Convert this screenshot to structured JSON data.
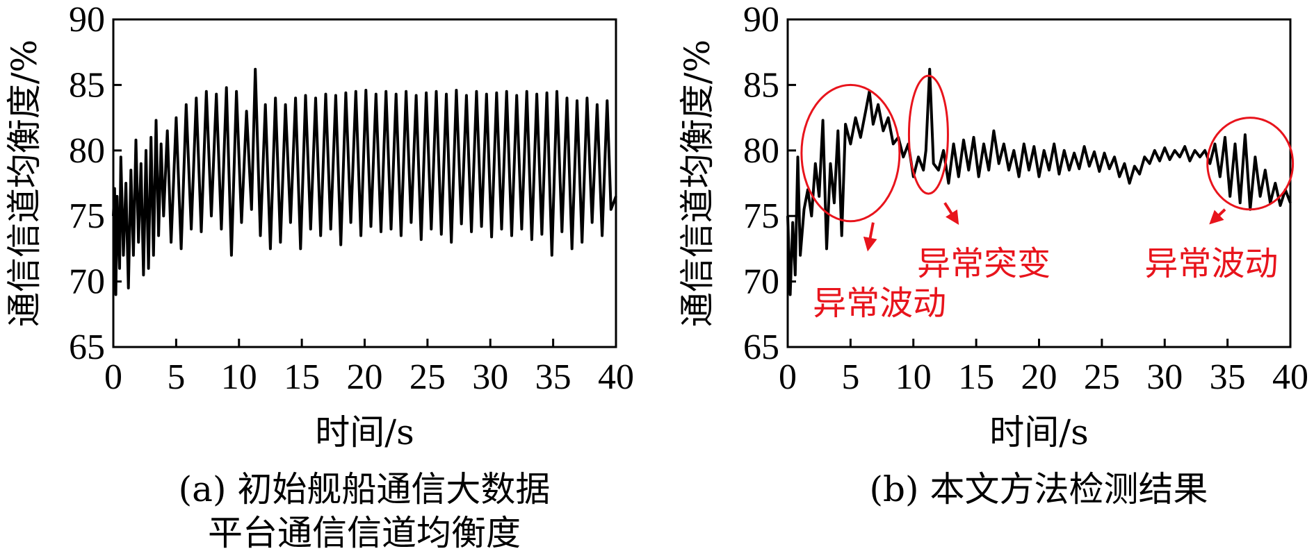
{
  "colors": {
    "series": "#000000",
    "annotation": "#e8141c",
    "axis": "#000000"
  },
  "chart_data": [
    {
      "id": "a",
      "type": "line",
      "title": "",
      "caption_lines": [
        "(a) 初始舰船通信大数据",
        "平台通信信道均衡度"
      ],
      "xlabel": "时间/s",
      "ylabel": "通信信道均衡度/%",
      "xlim": [
        0,
        40
      ],
      "ylim": [
        65,
        90
      ],
      "xticks": [
        0,
        5,
        10,
        15,
        20,
        25,
        30,
        35,
        40
      ],
      "yticks": [
        65,
        70,
        75,
        80,
        85,
        90
      ],
      "grid": false,
      "series": [
        {
          "values": [
            [
              0,
              75.0
            ],
            [
              0.1,
              77.1
            ],
            [
              0.2,
              69.0
            ],
            [
              0.3,
              76.5
            ],
            [
              0.5,
              71.0
            ],
            [
              0.6,
              79.5
            ],
            [
              0.8,
              72.0
            ],
            [
              1.0,
              77.5
            ],
            [
              1.2,
              69.5
            ],
            [
              1.4,
              78.5
            ],
            [
              1.6,
              72.0
            ],
            [
              1.8,
              80.8
            ],
            [
              2.0,
              73.0
            ],
            [
              2.2,
              79.0
            ],
            [
              2.4,
              70.5
            ],
            [
              2.6,
              80.0
            ],
            [
              2.8,
              71.0
            ],
            [
              3.0,
              81.0
            ],
            [
              3.2,
              72.0
            ],
            [
              3.4,
              82.3
            ],
            [
              3.6,
              73.5
            ],
            [
              3.8,
              80.5
            ],
            [
              4.0,
              75.0
            ],
            [
              4.3,
              81.5
            ],
            [
              4.6,
              73.0
            ],
            [
              5.0,
              82.5
            ],
            [
              5.4,
              72.5
            ],
            [
              5.8,
              83.5
            ],
            [
              6.2,
              74.0
            ],
            [
              6.6,
              84.0
            ],
            [
              7.0,
              73.8
            ],
            [
              7.4,
              84.5
            ],
            [
              7.8,
              75.0
            ],
            [
              8.2,
              84.3
            ],
            [
              8.6,
              74.0
            ],
            [
              9.0,
              84.8
            ],
            [
              9.4,
              72.0
            ],
            [
              9.8,
              84.5
            ],
            [
              10.2,
              74.5
            ],
            [
              10.6,
              83.0
            ],
            [
              11.0,
              75.5
            ],
            [
              11.3,
              86.2
            ],
            [
              11.7,
              73.5
            ],
            [
              12.1,
              83.5
            ],
            [
              12.5,
              72.5
            ],
            [
              12.9,
              84.0
            ],
            [
              13.3,
              73.0
            ],
            [
              13.7,
              83.5
            ],
            [
              14.1,
              74.5
            ],
            [
              14.5,
              84.0
            ],
            [
              14.9,
              72.5
            ],
            [
              15.3,
              84.2
            ],
            [
              15.7,
              74.0
            ],
            [
              16.1,
              84.0
            ],
            [
              16.5,
              73.5
            ],
            [
              16.9,
              84.3
            ],
            [
              17.3,
              74.0
            ],
            [
              17.7,
              84.2
            ],
            [
              18.1,
              72.8
            ],
            [
              18.5,
              84.4
            ],
            [
              18.9,
              74.5
            ],
            [
              19.3,
              84.5
            ],
            [
              19.7,
              73.5
            ],
            [
              20.1,
              84.6
            ],
            [
              20.5,
              74.2
            ],
            [
              20.9,
              84.3
            ],
            [
              21.3,
              73.8
            ],
            [
              21.7,
              84.5
            ],
            [
              22.1,
              74.0
            ],
            [
              22.5,
              84.3
            ],
            [
              22.9,
              73.5
            ],
            [
              23.3,
              84.5
            ],
            [
              23.7,
              74.5
            ],
            [
              24.1,
              84.2
            ],
            [
              24.5,
              73.2
            ],
            [
              24.9,
              84.4
            ],
            [
              25.3,
              74.0
            ],
            [
              25.7,
              84.5
            ],
            [
              26.1,
              73.6
            ],
            [
              26.5,
              84.3
            ],
            [
              26.9,
              73.0
            ],
            [
              27.3,
              84.6
            ],
            [
              27.7,
              74.4
            ],
            [
              28.1,
              84.2
            ],
            [
              28.5,
              73.8
            ],
            [
              28.9,
              84.5
            ],
            [
              29.3,
              74.2
            ],
            [
              29.7,
              84.3
            ],
            [
              30.1,
              73.4
            ],
            [
              30.5,
              84.4
            ],
            [
              30.9,
              74.0
            ],
            [
              31.3,
              84.5
            ],
            [
              31.7,
              73.5
            ],
            [
              32.1,
              84.2
            ],
            [
              32.5,
              74.0
            ],
            [
              32.9,
              84.5
            ],
            [
              33.3,
              73.2
            ],
            [
              33.7,
              84.3
            ],
            [
              34.1,
              73.6
            ],
            [
              34.5,
              84.4
            ],
            [
              34.9,
              72.0
            ],
            [
              35.3,
              84.5
            ],
            [
              35.7,
              73.8
            ],
            [
              36.1,
              84.0
            ],
            [
              36.5,
              72.5
            ],
            [
              36.9,
              83.8
            ],
            [
              37.3,
              73.0
            ],
            [
              37.7,
              84.0
            ],
            [
              38.1,
              74.5
            ],
            [
              38.5,
              83.5
            ],
            [
              38.9,
              73.5
            ],
            [
              39.3,
              83.8
            ],
            [
              39.6,
              75.5
            ],
            [
              40.0,
              76.5
            ]
          ]
        }
      ]
    },
    {
      "id": "b",
      "type": "line",
      "title": "",
      "caption_lines": [
        "(b) 本文方法检测结果"
      ],
      "xlabel": "时间/s",
      "ylabel": "通信信道均衡度/%",
      "xlim": [
        0,
        40
      ],
      "ylim": [
        65,
        90
      ],
      "xticks": [
        0,
        5,
        10,
        15,
        20,
        25,
        30,
        35,
        40
      ],
      "yticks": [
        65,
        70,
        75,
        80,
        85,
        90
      ],
      "grid": false,
      "series": [
        {
          "values": [
            [
              0,
              75.0
            ],
            [
              0.2,
              69.0
            ],
            [
              0.4,
              74.5
            ],
            [
              0.6,
              70.5
            ],
            [
              0.8,
              79.5
            ],
            [
              1.0,
              72.0
            ],
            [
              1.3,
              75.5
            ],
            [
              1.6,
              77.0
            ],
            [
              1.9,
              75.0
            ],
            [
              2.2,
              79.0
            ],
            [
              2.5,
              76.5
            ],
            [
              2.8,
              82.3
            ],
            [
              3.1,
              72.5
            ],
            [
              3.4,
              79.0
            ],
            [
              3.7,
              76.0
            ],
            [
              4.0,
              81.5
            ],
            [
              4.3,
              73.5
            ],
            [
              4.6,
              82.0
            ],
            [
              5.0,
              80.5
            ],
            [
              5.4,
              82.5
            ],
            [
              5.8,
              81.0
            ],
            [
              6.2,
              83.0
            ],
            [
              6.5,
              84.5
            ],
            [
              6.8,
              82.0
            ],
            [
              7.2,
              83.5
            ],
            [
              7.6,
              81.5
            ],
            [
              8.0,
              82.5
            ],
            [
              8.4,
              80.5
            ],
            [
              8.8,
              81.0
            ],
            [
              9.2,
              79.5
            ],
            [
              9.6,
              80.5
            ],
            [
              10.0,
              78.0
            ],
            [
              10.4,
              79.5
            ],
            [
              10.8,
              78.5
            ],
            [
              11.0,
              80.0
            ],
            [
              11.3,
              86.2
            ],
            [
              11.6,
              79.0
            ],
            [
              12.0,
              78.5
            ],
            [
              12.4,
              80.0
            ],
            [
              12.8,
              77.5
            ],
            [
              13.2,
              80.5
            ],
            [
              13.6,
              78.0
            ],
            [
              14.0,
              80.8
            ],
            [
              14.4,
              78.5
            ],
            [
              14.8,
              81.0
            ],
            [
              15.2,
              78.0
            ],
            [
              15.6,
              80.5
            ],
            [
              16.0,
              78.5
            ],
            [
              16.4,
              81.5
            ],
            [
              16.8,
              79.0
            ],
            [
              17.2,
              80.5
            ],
            [
              17.6,
              78.5
            ],
            [
              18.0,
              80.0
            ],
            [
              18.4,
              78.0
            ],
            [
              18.8,
              80.5
            ],
            [
              19.2,
              78.5
            ],
            [
              19.6,
              80.3
            ],
            [
              20.0,
              78.0
            ],
            [
              20.4,
              80.0
            ],
            [
              20.8,
              78.5
            ],
            [
              21.2,
              80.5
            ],
            [
              21.6,
              78.2
            ],
            [
              22.0,
              80.0
            ],
            [
              22.4,
              78.5
            ],
            [
              22.8,
              79.8
            ],
            [
              23.2,
              78.6
            ],
            [
              23.6,
              80.3
            ],
            [
              24.0,
              78.8
            ],
            [
              24.4,
              79.9
            ],
            [
              24.8,
              78.4
            ],
            [
              25.2,
              79.8
            ],
            [
              25.6,
              78.6
            ],
            [
              26.0,
              79.5
            ],
            [
              26.4,
              78.0
            ],
            [
              26.8,
              79.0
            ],
            [
              27.2,
              77.5
            ],
            [
              27.6,
              78.8
            ],
            [
              28.0,
              78.2
            ],
            [
              28.4,
              79.5
            ],
            [
              28.8,
              79.0
            ],
            [
              29.2,
              80.0
            ],
            [
              29.6,
              79.2
            ],
            [
              30.0,
              80.2
            ],
            [
              30.4,
              79.3
            ],
            [
              30.8,
              80.0
            ],
            [
              31.2,
              79.5
            ],
            [
              31.6,
              80.3
            ],
            [
              32.0,
              79.2
            ],
            [
              32.4,
              80.0
            ],
            [
              32.8,
              79.5
            ],
            [
              33.2,
              80.0
            ],
            [
              33.6,
              79.0
            ],
            [
              34.0,
              80.5
            ],
            [
              34.4,
              78.0
            ],
            [
              34.8,
              81.0
            ],
            [
              35.2,
              76.5
            ],
            [
              35.6,
              80.5
            ],
            [
              36.0,
              76.0
            ],
            [
              36.4,
              81.2
            ],
            [
              36.8,
              75.5
            ],
            [
              37.2,
              79.5
            ],
            [
              37.6,
              76.5
            ],
            [
              38.0,
              78.5
            ],
            [
              38.4,
              76.0
            ],
            [
              38.8,
              77.5
            ],
            [
              39.2,
              75.8
            ],
            [
              39.6,
              77.0
            ],
            [
              40.0,
              76.0
            ]
          ]
        }
      ],
      "annotations": [
        {
          "text": "异常波动",
          "ellipse": {
            "cx": 5.0,
            "cy": 79.8,
            "rx": 3.9,
            "ry": 5.2
          },
          "arrow_from": [
            6.8,
            74.5
          ],
          "arrow_to": [
            6.4,
            72.5
          ],
          "text_at": [
            2.0,
            67.5
          ]
        },
        {
          "text": "异常突变",
          "ellipse": {
            "cx": 11.2,
            "cy": 81.2,
            "rx": 1.55,
            "ry": 4.5
          },
          "arrow_from": [
            12.5,
            76.0
          ],
          "arrow_to": [
            13.5,
            74.5
          ],
          "text_at": [
            10.3,
            70.5
          ]
        },
        {
          "text": "异常波动",
          "ellipse": {
            "cx": 36.8,
            "cy": 79.0,
            "rx": 3.4,
            "ry": 3.5
          },
          "arrow_from": [
            34.8,
            75.5
          ],
          "arrow_to": [
            33.7,
            74.5
          ],
          "text_at": [
            28.4,
            70.5
          ]
        }
      ]
    }
  ]
}
